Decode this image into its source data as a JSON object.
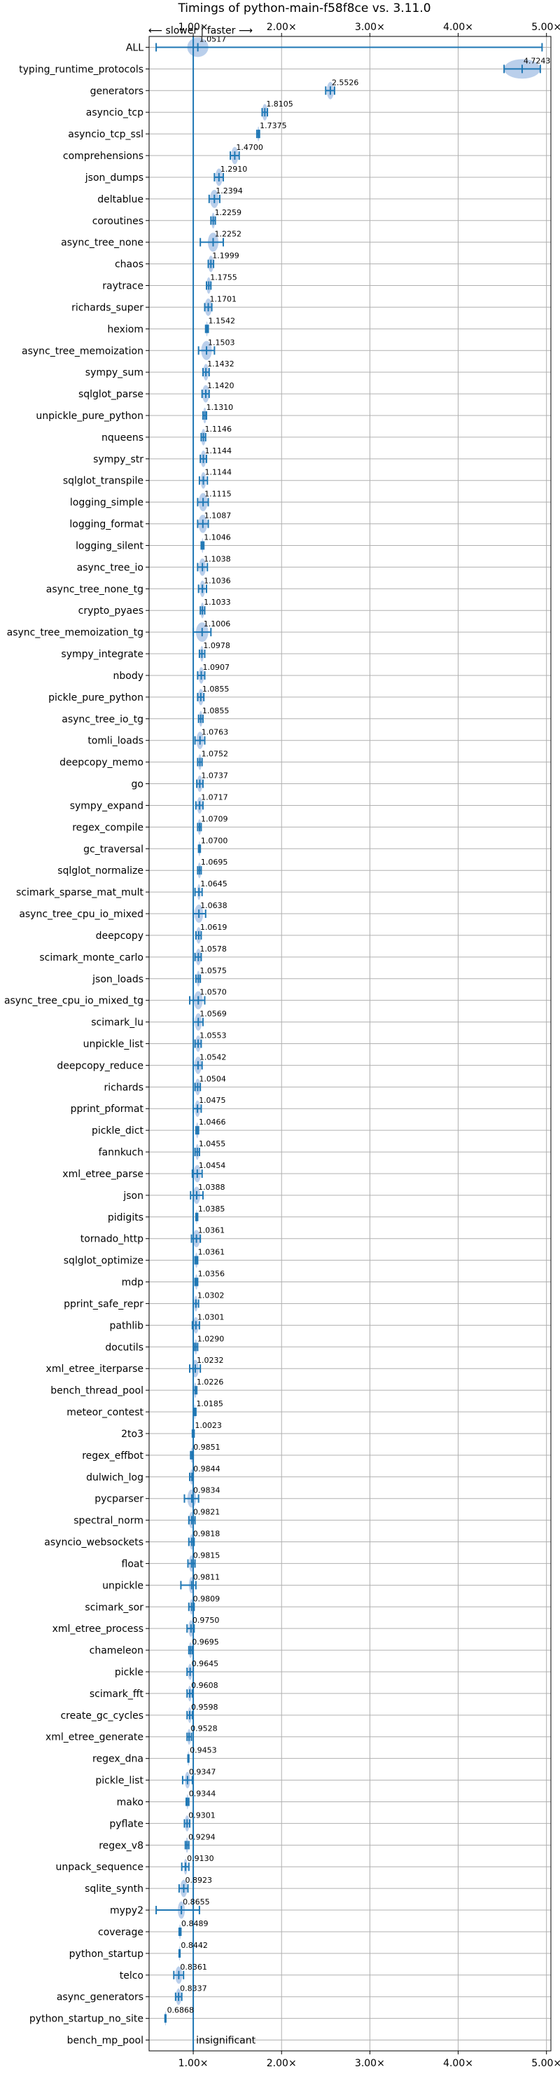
{
  "chart_data": {
    "type": "violin",
    "title": "Timings of python-main-f58f8ce vs. 3.11.0",
    "direction_label": "⟵ slower | faster ⟶",
    "x_ticks": [
      1,
      2,
      3,
      4,
      5
    ],
    "x_tick_labels": [
      "1.00×",
      "2.00×",
      "3.00×",
      "4.00×",
      "5.00×"
    ],
    "x_range": [
      0.5,
      5.05
    ],
    "reference_line": 1.0,
    "grid": true,
    "colors": {
      "body": "#aec7e8",
      "line": "#1f77b4",
      "ref": "#1f77b4",
      "outlier": "#d62728",
      "grid": "#b0b0b0"
    },
    "insignificant_label": "insignificant",
    "benchmarks": [
      {
        "name": "ALL",
        "value": 1.0517,
        "lo": 0.58,
        "hi": 4.95,
        "spread": 0.12,
        "label": "1.0517"
      },
      {
        "name": "typing_runtime_protocols",
        "value": 4.7243,
        "lo": 4.52,
        "hi": 4.93,
        "spread": 0.22,
        "label": "4.7243"
      },
      {
        "name": "generators",
        "value": 2.5526,
        "lo": 2.5,
        "hi": 2.6,
        "spread": 0.04,
        "label": "2.5526"
      },
      {
        "name": "asyncio_tcp",
        "value": 1.8105,
        "lo": 1.78,
        "hi": 1.84,
        "spread": 0.03,
        "label": "1.8105"
      },
      {
        "name": "asyncio_tcp_ssl",
        "value": 1.7375,
        "lo": 1.72,
        "hi": 1.75,
        "spread": 0.01,
        "label": "1.7375"
      },
      {
        "name": "comprehensions",
        "value": 1.47,
        "lo": 1.42,
        "hi": 1.52,
        "spread": 0.04,
        "label": "1.4700"
      },
      {
        "name": "json_dumps",
        "value": 1.291,
        "lo": 1.24,
        "hi": 1.34,
        "spread": 0.04,
        "label": "1.2910"
      },
      {
        "name": "deltablue",
        "value": 1.2394,
        "lo": 1.18,
        "hi": 1.3,
        "spread": 0.05,
        "label": "1.2394"
      },
      {
        "name": "coroutines",
        "value": 1.2259,
        "lo": 1.2,
        "hi": 1.25,
        "spread": 0.02,
        "label": "1.2259"
      },
      {
        "name": "async_tree_none",
        "value": 1.2252,
        "lo": 1.08,
        "hi": 1.34,
        "spread": 0.06,
        "label": "1.2252"
      },
      {
        "name": "chaos",
        "value": 1.1999,
        "lo": 1.17,
        "hi": 1.23,
        "spread": 0.03,
        "label": "1.1999"
      },
      {
        "name": "raytrace",
        "value": 1.1755,
        "lo": 1.15,
        "hi": 1.2,
        "spread": 0.03,
        "label": "1.1755"
      },
      {
        "name": "richards_super",
        "value": 1.1701,
        "lo": 1.13,
        "hi": 1.21,
        "spread": 0.04,
        "label": "1.1701"
      },
      {
        "name": "hexiom",
        "value": 1.1542,
        "lo": 1.14,
        "hi": 1.17,
        "spread": 0.01,
        "label": "1.1542"
      },
      {
        "name": "async_tree_memoization",
        "value": 1.1503,
        "lo": 1.06,
        "hi": 1.24,
        "spread": 0.06,
        "label": "1.1503"
      },
      {
        "name": "sympy_sum",
        "value": 1.1432,
        "lo": 1.11,
        "hi": 1.18,
        "spread": 0.03,
        "label": "1.1432"
      },
      {
        "name": "sqlglot_parse",
        "value": 1.142,
        "lo": 1.1,
        "hi": 1.18,
        "spread": 0.04,
        "label": "1.1420"
      },
      {
        "name": "unpickle_pure_python",
        "value": 1.131,
        "lo": 1.11,
        "hi": 1.15,
        "spread": 0.02,
        "label": "1.1310"
      },
      {
        "name": "nqueens",
        "value": 1.1146,
        "lo": 1.09,
        "hi": 1.14,
        "spread": 0.03,
        "label": "1.1146"
      },
      {
        "name": "sympy_str",
        "value": 1.1144,
        "lo": 1.08,
        "hi": 1.15,
        "spread": 0.03,
        "label": "1.1144"
      },
      {
        "name": "sqlglot_transpile",
        "value": 1.1144,
        "lo": 1.07,
        "hi": 1.16,
        "spread": 0.03,
        "label": "1.1144"
      },
      {
        "name": "logging_simple",
        "value": 1.1115,
        "lo": 1.05,
        "hi": 1.17,
        "spread": 0.05,
        "label": "1.1115"
      },
      {
        "name": "logging_format",
        "value": 1.1087,
        "lo": 1.05,
        "hi": 1.17,
        "spread": 0.05,
        "label": "1.1087"
      },
      {
        "name": "logging_silent",
        "value": 1.1046,
        "lo": 1.09,
        "hi": 1.12,
        "spread": 0.01,
        "label": "1.1046"
      },
      {
        "name": "async_tree_io",
        "value": 1.1038,
        "lo": 1.05,
        "hi": 1.16,
        "spread": 0.04,
        "label": "1.1038"
      },
      {
        "name": "async_tree_none_tg",
        "value": 1.1036,
        "lo": 1.06,
        "hi": 1.15,
        "spread": 0.03,
        "label": "1.1036"
      },
      {
        "name": "crypto_pyaes",
        "value": 1.1033,
        "lo": 1.08,
        "hi": 1.13,
        "spread": 0.02,
        "label": "1.1033"
      },
      {
        "name": "async_tree_memoization_tg",
        "value": 1.1006,
        "lo": 1.0,
        "hi": 1.2,
        "spread": 0.07,
        "label": "1.1006"
      },
      {
        "name": "sympy_integrate",
        "value": 1.0978,
        "lo": 1.07,
        "hi": 1.13,
        "spread": 0.02,
        "label": "1.0978"
      },
      {
        "name": "nbody",
        "value": 1.0907,
        "lo": 1.05,
        "hi": 1.13,
        "spread": 0.03,
        "label": "1.0907"
      },
      {
        "name": "pickle_pure_python",
        "value": 1.0855,
        "lo": 1.05,
        "hi": 1.12,
        "spread": 0.03,
        "label": "1.0855"
      },
      {
        "name": "async_tree_io_tg",
        "value": 1.0855,
        "lo": 1.06,
        "hi": 1.11,
        "spread": 0.02,
        "label": "1.0855"
      },
      {
        "name": "tomli_loads",
        "value": 1.0763,
        "lo": 1.02,
        "hi": 1.13,
        "spread": 0.04,
        "label": "1.0763"
      },
      {
        "name": "deepcopy_memo",
        "value": 1.0752,
        "lo": 1.05,
        "hi": 1.1,
        "spread": 0.02,
        "label": "1.0752"
      },
      {
        "name": "go",
        "value": 1.0737,
        "lo": 1.04,
        "hi": 1.11,
        "spread": 0.03,
        "label": "1.0737"
      },
      {
        "name": "sympy_expand",
        "value": 1.0717,
        "lo": 1.03,
        "hi": 1.11,
        "spread": 0.03,
        "label": "1.0717"
      },
      {
        "name": "regex_compile",
        "value": 1.0709,
        "lo": 1.05,
        "hi": 1.09,
        "spread": 0.02,
        "label": "1.0709"
      },
      {
        "name": "gc_traversal",
        "value": 1.07,
        "lo": 1.06,
        "hi": 1.08,
        "spread": 0.01,
        "label": "1.0700"
      },
      {
        "name": "sqlglot_normalize",
        "value": 1.0695,
        "lo": 1.05,
        "hi": 1.09,
        "spread": 0.02,
        "label": "1.0695"
      },
      {
        "name": "scimark_sparse_mat_mult",
        "value": 1.0645,
        "lo": 1.02,
        "hi": 1.1,
        "spread": 0.02,
        "label": "1.0645"
      },
      {
        "name": "async_tree_cpu_io_mixed",
        "value": 1.0638,
        "lo": 1.0,
        "hi": 1.14,
        "spread": 0.05,
        "label": "1.0638"
      },
      {
        "name": "deepcopy",
        "value": 1.0619,
        "lo": 1.03,
        "hi": 1.09,
        "spread": 0.03,
        "label": "1.0619"
      },
      {
        "name": "scimark_monte_carlo",
        "value": 1.0578,
        "lo": 1.02,
        "hi": 1.09,
        "spread": 0.03,
        "label": "1.0578"
      },
      {
        "name": "json_loads",
        "value": 1.0575,
        "lo": 1.03,
        "hi": 1.08,
        "spread": 0.02,
        "label": "1.0575"
      },
      {
        "name": "async_tree_cpu_io_mixed_tg",
        "value": 1.057,
        "lo": 0.96,
        "hi": 1.13,
        "spread": 0.05,
        "label": "1.0570"
      },
      {
        "name": "scimark_lu",
        "value": 1.0569,
        "lo": 1.0,
        "hi": 1.11,
        "spread": 0.04,
        "label": "1.0569"
      },
      {
        "name": "unpickle_list",
        "value": 1.0553,
        "lo": 1.02,
        "hi": 1.09,
        "spread": 0.03,
        "label": "1.0553"
      },
      {
        "name": "deepcopy_reduce",
        "value": 1.0542,
        "lo": 1.0,
        "hi": 1.1,
        "spread": 0.04,
        "label": "1.0542"
      },
      {
        "name": "richards",
        "value": 1.0504,
        "lo": 1.02,
        "hi": 1.08,
        "spread": 0.03,
        "label": "1.0504"
      },
      {
        "name": "pprint_pformat",
        "value": 1.0475,
        "lo": 1.0,
        "hi": 1.09,
        "spread": 0.03,
        "label": "1.0475"
      },
      {
        "name": "pickle_dict",
        "value": 1.0466,
        "lo": 1.03,
        "hi": 1.06,
        "spread": 0.02,
        "label": "1.0466"
      },
      {
        "name": "fannkuch",
        "value": 1.0455,
        "lo": 1.02,
        "hi": 1.07,
        "spread": 0.02,
        "label": "1.0455"
      },
      {
        "name": "xml_etree_parse",
        "value": 1.0454,
        "lo": 0.99,
        "hi": 1.1,
        "spread": 0.04,
        "label": "1.0454"
      },
      {
        "name": "json",
        "value": 1.0388,
        "lo": 0.97,
        "hi": 1.11,
        "spread": 0.04,
        "label": "1.0388"
      },
      {
        "name": "pidigits",
        "value": 1.0385,
        "lo": 1.03,
        "hi": 1.05,
        "spread": 0.005,
        "label": "1.0385"
      },
      {
        "name": "tornado_http",
        "value": 1.0361,
        "lo": 0.98,
        "hi": 1.08,
        "spread": 0.04,
        "label": "1.0361"
      },
      {
        "name": "sqlglot_optimize",
        "value": 1.0361,
        "lo": 1.02,
        "hi": 1.05,
        "spread": 0.015,
        "label": "1.0361"
      },
      {
        "name": "mdp",
        "value": 1.0356,
        "lo": 1.02,
        "hi": 1.05,
        "spread": 0.015,
        "label": "1.0356"
      },
      {
        "name": "pprint_safe_repr",
        "value": 1.0302,
        "lo": 1.0,
        "hi": 1.06,
        "spread": 0.02,
        "label": "1.0302"
      },
      {
        "name": "pathlib",
        "value": 1.0301,
        "lo": 0.99,
        "hi": 1.07,
        "spread": 0.03,
        "label": "1.0301"
      },
      {
        "name": "docutils",
        "value": 1.029,
        "lo": 1.01,
        "hi": 1.05,
        "spread": 0.015,
        "label": "1.0290"
      },
      {
        "name": "xml_etree_iterparse",
        "value": 1.0232,
        "lo": 0.96,
        "hi": 1.08,
        "spread": 0.04,
        "label": "1.0232"
      },
      {
        "name": "bench_thread_pool",
        "value": 1.0226,
        "lo": 1.0,
        "hi": 1.04,
        "spread": 0.015,
        "label": "1.0226"
      },
      {
        "name": "meteor_contest",
        "value": 1.0185,
        "lo": 1.01,
        "hi": 1.03,
        "spread": 0.008,
        "label": "1.0185"
      },
      {
        "name": "2to3",
        "value": 1.0023,
        "lo": 0.99,
        "hi": 1.01,
        "spread": 0.008,
        "label": "1.0023"
      },
      {
        "name": "regex_effbot",
        "value": 0.9851,
        "lo": 0.97,
        "hi": 1.0,
        "spread": 0.015,
        "label": "0.9851"
      },
      {
        "name": "dulwich_log",
        "value": 0.9844,
        "lo": 0.96,
        "hi": 1.0,
        "spread": 0.02,
        "label": "0.9844"
      },
      {
        "name": "pycparser",
        "value": 0.9834,
        "lo": 0.9,
        "hi": 1.06,
        "spread": 0.05,
        "label": "0.9834"
      },
      {
        "name": "spectral_norm",
        "value": 0.9821,
        "lo": 0.95,
        "hi": 1.02,
        "spread": 0.03,
        "label": "0.9821"
      },
      {
        "name": "asyncio_websockets",
        "value": 0.9818,
        "lo": 0.95,
        "hi": 1.01,
        "spread": 0.02,
        "label": "0.9818"
      },
      {
        "name": "float",
        "value": 0.9815,
        "lo": 0.94,
        "hi": 1.02,
        "spread": 0.03,
        "label": "0.9815"
      },
      {
        "name": "unpickle",
        "value": 0.9811,
        "lo": 0.86,
        "hi": 1.03,
        "spread": 0.03,
        "label": "0.9811"
      },
      {
        "name": "scimark_sor",
        "value": 0.9809,
        "lo": 0.95,
        "hi": 1.01,
        "spread": 0.02,
        "label": "0.9809"
      },
      {
        "name": "xml_etree_process",
        "value": 0.975,
        "lo": 0.93,
        "hi": 1.01,
        "spread": 0.03,
        "label": "0.9750"
      },
      {
        "name": "chameleon",
        "value": 0.9695,
        "lo": 0.95,
        "hi": 0.99,
        "spread": 0.02,
        "label": "0.9695"
      },
      {
        "name": "pickle",
        "value": 0.9645,
        "lo": 0.93,
        "hi": 1.0,
        "spread": 0.025,
        "label": "0.9645"
      },
      {
        "name": "scimark_fft",
        "value": 0.9608,
        "lo": 0.93,
        "hi": 0.99,
        "spread": 0.02,
        "label": "0.9608"
      },
      {
        "name": "create_gc_cycles",
        "value": 0.9598,
        "lo": 0.93,
        "hi": 0.99,
        "spread": 0.02,
        "label": "0.9598"
      },
      {
        "name": "xml_etree_generate",
        "value": 0.9528,
        "lo": 0.93,
        "hi": 0.98,
        "spread": 0.02,
        "label": "0.9528"
      },
      {
        "name": "regex_dna",
        "value": 0.9453,
        "lo": 0.94,
        "hi": 0.95,
        "spread": 0.005,
        "label": "0.9453"
      },
      {
        "name": "pickle_list",
        "value": 0.9347,
        "lo": 0.88,
        "hi": 0.99,
        "spread": 0.03,
        "label": "0.9347"
      },
      {
        "name": "mako",
        "value": 0.9344,
        "lo": 0.92,
        "hi": 0.95,
        "spread": 0.01,
        "label": "0.9344"
      },
      {
        "name": "pyflate",
        "value": 0.9301,
        "lo": 0.9,
        "hi": 0.96,
        "spread": 0.025,
        "label": "0.9301"
      },
      {
        "name": "regex_v8",
        "value": 0.9294,
        "lo": 0.91,
        "hi": 0.95,
        "spread": 0.015,
        "label": "0.9294"
      },
      {
        "name": "unpack_sequence",
        "value": 0.913,
        "lo": 0.87,
        "hi": 0.95,
        "spread": 0.02,
        "label": "0.9130"
      },
      {
        "name": "sqlite_synth",
        "value": 0.8923,
        "lo": 0.84,
        "hi": 0.94,
        "spread": 0.04,
        "label": "0.8923"
      },
      {
        "name": "mypy2",
        "value": 0.8655,
        "lo": 0.58,
        "hi": 1.07,
        "spread": 0.04,
        "label": "0.8655"
      },
      {
        "name": "coverage",
        "value": 0.8489,
        "lo": 0.84,
        "hi": 0.86,
        "spread": 0.01,
        "label": "0.8489"
      },
      {
        "name": "python_startup",
        "value": 0.8442,
        "lo": 0.84,
        "hi": 0.85,
        "spread": 0.005,
        "label": "0.8442"
      },
      {
        "name": "telco",
        "value": 0.8361,
        "lo": 0.78,
        "hi": 0.89,
        "spread": 0.04,
        "label": "0.8361"
      },
      {
        "name": "async_generators",
        "value": 0.8337,
        "lo": 0.8,
        "hi": 0.87,
        "spread": 0.03,
        "label": "0.8337"
      },
      {
        "name": "python_startup_no_site",
        "value": 0.6868,
        "lo": 0.68,
        "hi": 0.69,
        "spread": 0.005,
        "label": "0.6868"
      },
      {
        "name": "bench_mp_pool",
        "value": null,
        "lo": null,
        "hi": null,
        "spread": 0,
        "label": ""
      }
    ]
  }
}
